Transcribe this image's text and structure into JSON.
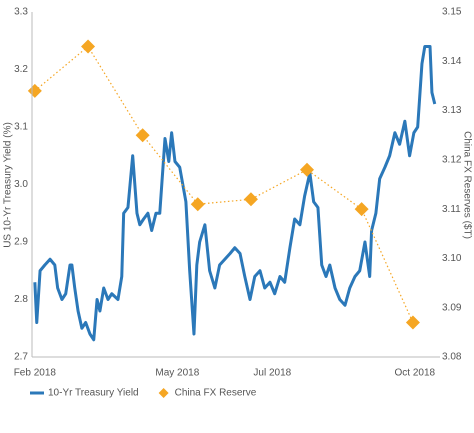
{
  "chart_data": {
    "type": "line",
    "y_label": "US 10-Yr Treasury Yield (%)",
    "y2_label": "China FX Reserves ($T)",
    "xlim": [
      -0.06,
      8.53
    ],
    "xticks": [
      {
        "value": 0,
        "label": "Feb 2018"
      },
      {
        "value": 3,
        "label": "May 2018"
      },
      {
        "value": 5,
        "label": "Jul 2018"
      },
      {
        "value": 8,
        "label": "Oct 2018"
      }
    ],
    "ylim": [
      2.7,
      3.3
    ],
    "yticks": [
      2.7,
      2.8,
      2.9,
      {
        "value": 3,
        "label": "3.0"
      },
      3.1,
      3.2,
      3.3
    ],
    "y2lim": [
      3.08,
      3.15
    ],
    "y2ticks": [
      3.08,
      3.09,
      {
        "value": 3.1,
        "label": "3.10"
      },
      3.11,
      3.12,
      3.13,
      3.14,
      3.15
    ],
    "grid": false,
    "legend": "bottom",
    "series": [
      {
        "name": "10-Yr Treasury Yield",
        "color": "#2b78b9",
        "style": "line",
        "x": [
          0,
          0.04,
          0.11,
          0.21,
          0.32,
          0.42,
          0.48,
          0.57,
          0.65,
          0.74,
          0.78,
          0.84,
          0.91,
          0.99,
          1.07,
          1.16,
          1.24,
          1.31,
          1.37,
          1.45,
          1.54,
          1.62,
          1.75,
          1.83,
          1.87,
          1.96,
          2.06,
          2.15,
          2.21,
          2.29,
          2.38,
          2.46,
          2.55,
          2.63,
          2.74,
          2.82,
          2.88,
          2.95,
          3.05,
          3.18,
          3.26,
          3.35,
          3.41,
          3.47,
          3.58,
          3.68,
          3.79,
          3.89,
          4.0,
          4.11,
          4.21,
          4.32,
          4.42,
          4.53,
          4.63,
          4.74,
          4.84,
          4.95,
          5.05,
          5.16,
          5.26,
          5.37,
          5.47,
          5.58,
          5.68,
          5.79,
          5.87,
          5.96,
          6.04,
          6.13,
          6.21,
          6.32,
          6.42,
          6.53,
          6.63,
          6.74,
          6.84,
          6.95,
          7.05,
          7.09,
          7.18,
          7.26,
          7.37,
          7.47,
          7.58,
          7.68,
          7.79,
          7.89,
          7.98,
          8.06,
          8.15,
          8.21,
          8.32,
          8.36,
          8.42
        ],
        "values": [
          2.83,
          2.76,
          2.85,
          2.86,
          2.87,
          2.86,
          2.82,
          2.8,
          2.81,
          2.86,
          2.86,
          2.82,
          2.78,
          2.75,
          2.76,
          2.74,
          2.73,
          2.8,
          2.78,
          2.82,
          2.8,
          2.81,
          2.8,
          2.84,
          2.95,
          2.96,
          3.05,
          2.95,
          2.93,
          2.94,
          2.95,
          2.92,
          2.95,
          2.95,
          3.08,
          3.04,
          3.09,
          3.04,
          3.03,
          2.97,
          2.85,
          2.74,
          2.86,
          2.9,
          2.93,
          2.85,
          2.82,
          2.86,
          2.87,
          2.88,
          2.89,
          2.88,
          2.84,
          2.8,
          2.84,
          2.85,
          2.82,
          2.83,
          2.81,
          2.84,
          2.83,
          2.89,
          2.94,
          2.93,
          2.98,
          3.02,
          2.97,
          2.96,
          2.86,
          2.84,
          2.86,
          2.82,
          2.8,
          2.79,
          2.82,
          2.84,
          2.85,
          2.9,
          2.84,
          2.92,
          2.95,
          3.01,
          3.03,
          3.05,
          3.09,
          3.07,
          3.11,
          3.05,
          3.09,
          3.1,
          3.21,
          3.24,
          3.24,
          3.16,
          3.14
        ]
      },
      {
        "name": "China FX Reserve",
        "color": "#f5a623",
        "style": "diamond",
        "axis": "y2",
        "x": [
          0,
          1.12,
          2.27,
          3.43,
          4.55,
          5.73,
          6.88,
          7.96
        ],
        "values": [
          3.134,
          3.143,
          3.125,
          3.111,
          3.112,
          3.118,
          3.11,
          3.087
        ]
      }
    ]
  }
}
